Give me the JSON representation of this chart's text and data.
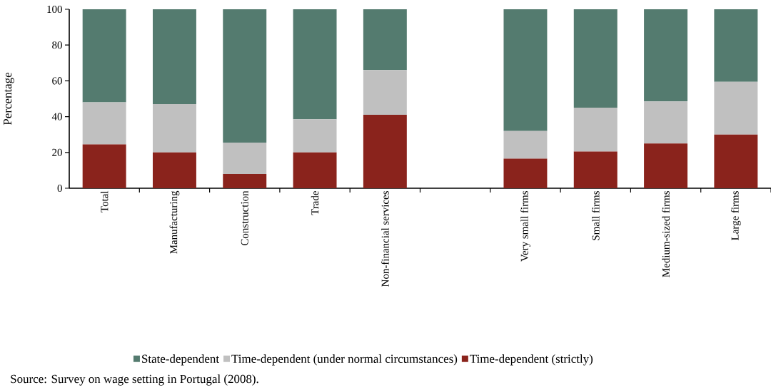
{
  "chart_data": {
    "type": "bar",
    "stacked": true,
    "ylabel": "Percentage",
    "categories": [
      "Total",
      "Manufacturing",
      "Construction",
      "Trade",
      "Non-financial services",
      null,
      "Very small firms",
      "Small firms",
      "Medium-sized firms",
      "Large firms"
    ],
    "series": [
      {
        "name": "Time-dependent (strictly)",
        "color": "#8a231c",
        "values": [
          24.5,
          20,
          8,
          20,
          41,
          null,
          16.5,
          20.5,
          25,
          30
        ]
      },
      {
        "name": "Time-dependent (under normal circumstances)",
        "color": "#c0c0c0",
        "values": [
          23.5,
          27,
          17.5,
          18.5,
          25,
          null,
          15.5,
          24.5,
          23.5,
          29.5
        ]
      },
      {
        "name": "State-dependent",
        "color": "#547b6f",
        "values": [
          52,
          53,
          74.5,
          61.5,
          34,
          null,
          68,
          55,
          51.5,
          40.5
        ]
      }
    ],
    "ylim": [
      0,
      100
    ],
    "yticks": [
      0,
      20,
      40,
      60,
      80,
      100
    ],
    "legend": "bottom",
    "grid": false,
    "annotations": [
      "Source: Survey on wage setting in Portugal (2008)."
    ]
  }
}
